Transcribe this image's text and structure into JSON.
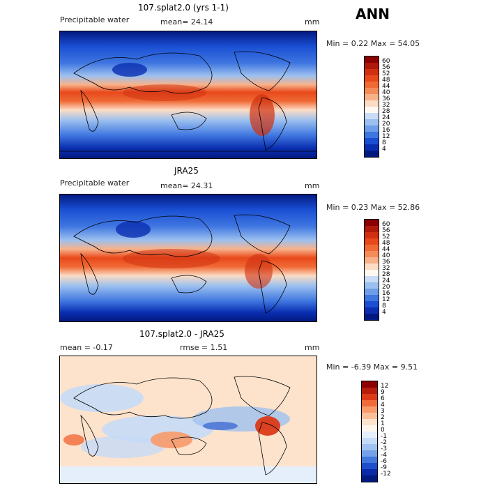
{
  "season": "ANN",
  "panels": [
    {
      "title": "107.splat2.0 (yrs 1-1)",
      "field": "Precipitable water",
      "stat1": "mean=  24.14",
      "stat2": "",
      "units": "mm",
      "minmax": "Min =   0.22 Max =  54.05",
      "levels": [
        "60",
        "56",
        "52",
        "48",
        "44",
        "40",
        "36",
        "32",
        "28",
        "24",
        "20",
        "16",
        "12",
        "8",
        "4"
      ]
    },
    {
      "title": "JRA25",
      "field": "Precipitable water",
      "stat1": "mean=  24.31",
      "stat2": "",
      "units": "mm",
      "minmax": "Min =   0.23 Max =  52.86",
      "levels": [
        "60",
        "56",
        "52",
        "48",
        "44",
        "40",
        "36",
        "32",
        "28",
        "24",
        "20",
        "16",
        "12",
        "8",
        "4"
      ]
    },
    {
      "title": "107.splat2.0 - JRA25",
      "field": "",
      "stat1": "mean =   -0.17",
      "stat2": "rmse =   1.51",
      "units": "mm",
      "minmax": "Min =  -6.39 Max =   9.51",
      "levels": [
        "12",
        "9",
        "6",
        "4",
        "3",
        "2",
        "1",
        "0",
        "-1",
        "-2",
        "-3",
        "-4",
        "-6",
        "-9",
        "-12"
      ]
    }
  ],
  "colors": {
    "abs_scale": [
      "#8b0000",
      "#b01a0a",
      "#d03010",
      "#e8491b",
      "#f06a35",
      "#f48c5a",
      "#f7b28a",
      "#fbdcc4",
      "#fff8f0",
      "#c8dcf5",
      "#9cc0ef",
      "#6f9ee8",
      "#3f76e0",
      "#1a4fd4",
      "#0a2eb0",
      "#021a80"
    ],
    "diff_scale": [
      "#8b0000",
      "#b81c0c",
      "#dc3a18",
      "#f06a3a",
      "#f89a6a",
      "#fbbf9a",
      "#fde2cc",
      "#fff6ee",
      "#e4effb",
      "#c6dbf6",
      "#9fc2f0",
      "#73a2e8",
      "#4277dc",
      "#1d4fcc",
      "#0a2aa8",
      "#021a80"
    ]
  }
}
